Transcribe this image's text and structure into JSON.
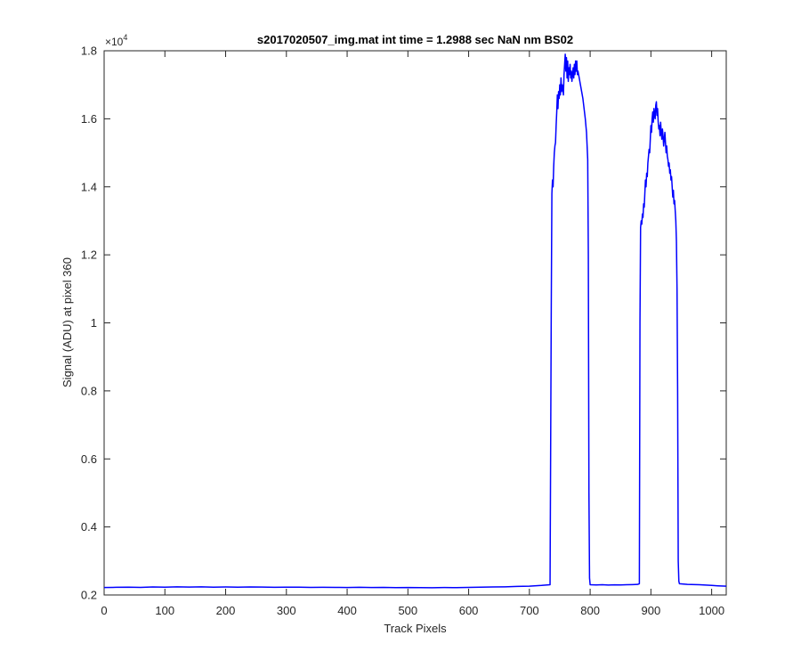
{
  "chart_data": {
    "type": "line",
    "title": "s2017020507_img.mat int time = 1.2988 sec  NaN nm BS02",
    "xlabel": "Track Pixels",
    "ylabel": "Signal (ADU) at pixel 360",
    "xlim": [
      0,
      1024
    ],
    "ylim": [
      2000,
      18000
    ],
    "x_ticks": [
      0,
      100,
      200,
      300,
      400,
      500,
      600,
      700,
      800,
      900,
      1000
    ],
    "x_tick_labels": [
      "0",
      "100",
      "200",
      "300",
      "400",
      "500",
      "600",
      "700",
      "800",
      "900",
      "1000"
    ],
    "y_ticks": [
      2000,
      4000,
      6000,
      8000,
      10000,
      12000,
      14000,
      16000,
      18000
    ],
    "y_tick_labels": [
      "0.2",
      "0.4",
      "0.6",
      "0.8",
      "1",
      "1.2",
      "1.4",
      "1.6",
      "1.8"
    ],
    "y_exponent_base": "×10",
    "y_exponent_power": "4",
    "grid": false,
    "series": [
      {
        "color": "#0000ff",
        "points": [
          [
            0,
            2220
          ],
          [
            20,
            2225
          ],
          [
            40,
            2230
          ],
          [
            60,
            2222
          ],
          [
            80,
            2235
          ],
          [
            100,
            2228
          ],
          [
            120,
            2240
          ],
          [
            140,
            2232
          ],
          [
            160,
            2238
          ],
          [
            180,
            2230
          ],
          [
            200,
            2236
          ],
          [
            220,
            2229
          ],
          [
            240,
            2234
          ],
          [
            260,
            2231
          ],
          [
            280,
            2225
          ],
          [
            300,
            2230
          ],
          [
            320,
            2228
          ],
          [
            340,
            2222
          ],
          [
            360,
            2226
          ],
          [
            380,
            2224
          ],
          [
            400,
            2220
          ],
          [
            420,
            2225
          ],
          [
            440,
            2218
          ],
          [
            460,
            2222
          ],
          [
            480,
            2216
          ],
          [
            500,
            2220
          ],
          [
            520,
            2215
          ],
          [
            540,
            2214
          ],
          [
            560,
            2218
          ],
          [
            580,
            2216
          ],
          [
            600,
            2222
          ],
          [
            620,
            2228
          ],
          [
            640,
            2235
          ],
          [
            660,
            2240
          ],
          [
            680,
            2252
          ],
          [
            700,
            2260
          ],
          [
            720,
            2280
          ],
          [
            734,
            2300
          ],
          [
            736,
            10500
          ],
          [
            737,
            13800
          ],
          [
            738,
            14200
          ],
          [
            739,
            14000
          ],
          [
            740,
            14600
          ],
          [
            741,
            15000
          ],
          [
            742,
            15200
          ],
          [
            743,
            15300
          ],
          [
            744,
            15800
          ],
          [
            745,
            16200
          ],
          [
            746,
            16700
          ],
          [
            747,
            16300
          ],
          [
            748,
            16800
          ],
          [
            749,
            16600
          ],
          [
            750,
            17000
          ],
          [
            751,
            16700
          ],
          [
            752,
            17200
          ],
          [
            753,
            16800
          ],
          [
            754,
            17000
          ],
          [
            755,
            16900
          ],
          [
            756,
            16700
          ],
          [
            757,
            17300
          ],
          [
            758,
            17600
          ],
          [
            759,
            17900
          ],
          [
            760,
            17400
          ],
          [
            761,
            17800
          ],
          [
            762,
            17200
          ],
          [
            763,
            17700
          ],
          [
            764,
            17100
          ],
          [
            765,
            17500
          ],
          [
            766,
            17300
          ],
          [
            767,
            17600
          ],
          [
            768,
            17200
          ],
          [
            769,
            17400
          ],
          [
            770,
            17100
          ],
          [
            771,
            17300
          ],
          [
            772,
            17500
          ],
          [
            773,
            17200
          ],
          [
            774,
            17600
          ],
          [
            775,
            17300
          ],
          [
            776,
            17700
          ],
          [
            777,
            17400
          ],
          [
            778,
            17700
          ],
          [
            779,
            17300
          ],
          [
            780,
            17400
          ],
          [
            782,
            17200
          ],
          [
            784,
            17000
          ],
          [
            786,
            16800
          ],
          [
            788,
            16600
          ],
          [
            790,
            16300
          ],
          [
            792,
            16000
          ],
          [
            794,
            15600
          ],
          [
            796,
            14800
          ],
          [
            797,
            12000
          ],
          [
            798,
            5000
          ],
          [
            799,
            2500
          ],
          [
            800,
            2300
          ],
          [
            810,
            2295
          ],
          [
            820,
            2300
          ],
          [
            830,
            2290
          ],
          [
            840,
            2298
          ],
          [
            850,
            2295
          ],
          [
            860,
            2300
          ],
          [
            870,
            2305
          ],
          [
            878,
            2310
          ],
          [
            881,
            2330
          ],
          [
            882,
            10000
          ],
          [
            883,
            12800
          ],
          [
            884,
            13000
          ],
          [
            885,
            12900
          ],
          [
            886,
            13200
          ],
          [
            887,
            13100
          ],
          [
            888,
            13500
          ],
          [
            889,
            13400
          ],
          [
            890,
            13800
          ],
          [
            891,
            14200
          ],
          [
            892,
            14000
          ],
          [
            893,
            14400
          ],
          [
            894,
            14300
          ],
          [
            895,
            14700
          ],
          [
            896,
            14900
          ],
          [
            897,
            15100
          ],
          [
            898,
            15000
          ],
          [
            899,
            15400
          ],
          [
            900,
            15800
          ],
          [
            901,
            15600
          ],
          [
            902,
            16000
          ],
          [
            903,
            16200
          ],
          [
            904,
            15900
          ],
          [
            905,
            16300
          ],
          [
            906,
            16100
          ],
          [
            907,
            16000
          ],
          [
            908,
            16400
          ],
          [
            909,
            16500
          ],
          [
            910,
            16100
          ],
          [
            911,
            16300
          ],
          [
            912,
            15900
          ],
          [
            913,
            15700
          ],
          [
            914,
            15800
          ],
          [
            915,
            15500
          ],
          [
            916,
            15900
          ],
          [
            917,
            15600
          ],
          [
            918,
            15400
          ],
          [
            919,
            15700
          ],
          [
            920,
            15500
          ],
          [
            921,
            15200
          ],
          [
            922,
            15400
          ],
          [
            923,
            15600
          ],
          [
            924,
            15300
          ],
          [
            925,
            15000
          ],
          [
            926,
            15200
          ],
          [
            927,
            14900
          ],
          [
            928,
            14800
          ],
          [
            929,
            14600
          ],
          [
            930,
            14700
          ],
          [
            931,
            14400
          ],
          [
            932,
            14500
          ],
          [
            933,
            14200
          ],
          [
            934,
            14300
          ],
          [
            935,
            14000
          ],
          [
            936,
            13700
          ],
          [
            937,
            13900
          ],
          [
            938,
            13500
          ],
          [
            939,
            13600
          ],
          [
            940,
            13300
          ],
          [
            941,
            13000
          ],
          [
            942,
            12400
          ],
          [
            943,
            11000
          ],
          [
            944,
            8000
          ],
          [
            945,
            3000
          ],
          [
            946,
            2400
          ],
          [
            947,
            2330
          ],
          [
            960,
            2310
          ],
          [
            980,
            2300
          ],
          [
            1000,
            2280
          ],
          [
            1010,
            2270
          ],
          [
            1024,
            2260
          ]
        ]
      }
    ]
  }
}
